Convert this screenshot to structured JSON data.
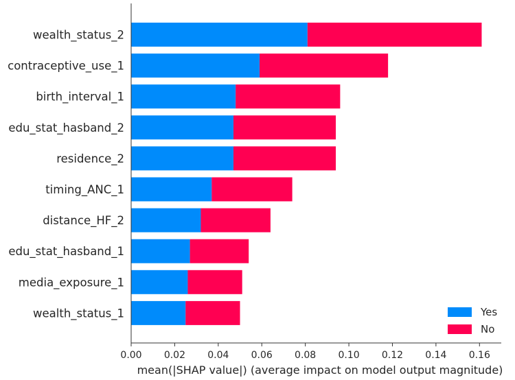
{
  "chart_data": {
    "type": "bar",
    "orientation": "horizontal",
    "stacked": true,
    "categories": [
      "wealth_status_2",
      "contraceptive_use_1",
      "birth_interval_1",
      "edu_stat_hasband_2",
      "residence_2",
      "timing_ANC_1",
      "distance_HF_2",
      "edu_stat_hasband_1",
      "media_exposure_1",
      "wealth_status_1"
    ],
    "series": [
      {
        "name": "Yes",
        "color": "#008BFB",
        "values": [
          0.081,
          0.059,
          0.048,
          0.047,
          0.047,
          0.037,
          0.032,
          0.027,
          0.026,
          0.025
        ]
      },
      {
        "name": "No",
        "color": "#FF0052",
        "values": [
          0.08,
          0.059,
          0.048,
          0.047,
          0.047,
          0.037,
          0.032,
          0.027,
          0.025,
          0.025
        ]
      }
    ],
    "xlabel": "mean(|SHAP value|) (average impact on model output magnitude)",
    "xlim": [
      0,
      0.17
    ],
    "xticks": [
      "0.00",
      "0.02",
      "0.04",
      "0.06",
      "0.08",
      "0.10",
      "0.12",
      "0.14",
      "0.16"
    ],
    "legend": {
      "placement": "bottom-right",
      "entries": [
        "Yes",
        "No"
      ]
    },
    "grid": false
  }
}
